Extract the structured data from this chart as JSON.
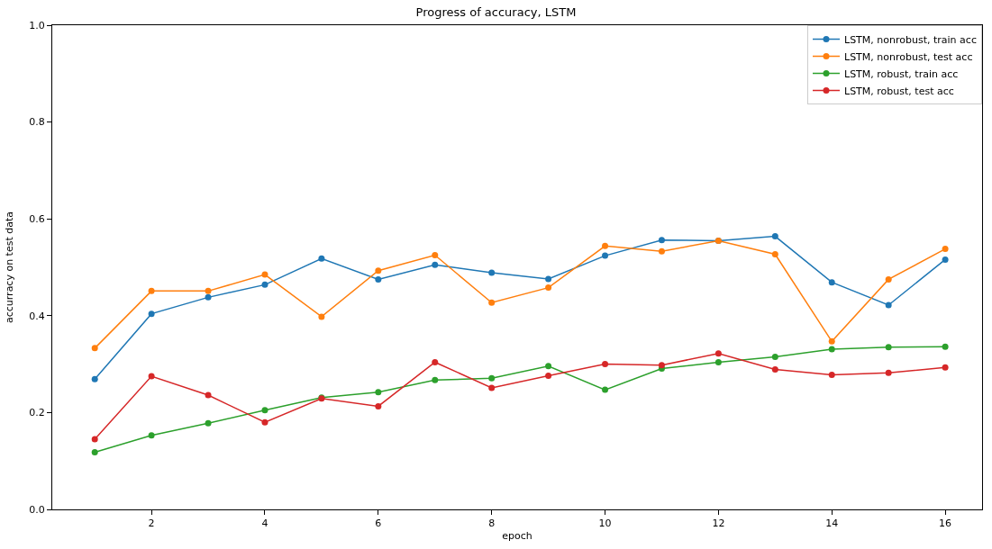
{
  "chart_data": {
    "type": "line",
    "title": "Progress of accuracy, LSTM",
    "xlabel": "epoch",
    "ylabel": "accurracy on test data",
    "x": [
      1,
      2,
      3,
      4,
      5,
      6,
      7,
      8,
      9,
      10,
      11,
      12,
      13,
      14,
      15,
      16
    ],
    "series": [
      {
        "name": "LSTM, nonrobust, train acc",
        "color": "#1f77b4",
        "values": [
          0.269,
          0.404,
          0.438,
          0.464,
          0.518,
          0.475,
          0.505,
          0.489,
          0.476,
          0.524,
          0.556,
          0.555,
          0.564,
          0.469,
          0.422,
          0.516
        ]
      },
      {
        "name": "LSTM, nonrobust, test acc",
        "color": "#ff7f0e",
        "values": [
          0.333,
          0.451,
          0.451,
          0.485,
          0.398,
          0.493,
          0.525,
          0.427,
          0.458,
          0.544,
          0.533,
          0.555,
          0.527,
          0.347,
          0.475,
          0.538
        ]
      },
      {
        "name": "LSTM, robust, train acc",
        "color": "#2ca02c",
        "values": [
          0.118,
          0.153,
          0.178,
          0.205,
          0.231,
          0.242,
          0.267,
          0.271,
          0.296,
          0.247,
          0.291,
          0.304,
          0.315,
          0.331,
          0.335,
          0.336
        ]
      },
      {
        "name": "LSTM, robust, test acc",
        "color": "#d62728",
        "values": [
          0.145,
          0.275,
          0.236,
          0.18,
          0.229,
          0.213,
          0.304,
          0.251,
          0.276,
          0.3,
          0.298,
          0.322,
          0.289,
          0.278,
          0.282,
          0.293
        ]
      }
    ],
    "xlim": [
      0.25,
      16.65
    ],
    "xticks": [
      2,
      4,
      6,
      8,
      10,
      12,
      14,
      16
    ],
    "ylim": [
      0,
      1
    ],
    "yticks": [
      {
        "value": 0,
        "label": "0.0"
      },
      {
        "value": 0.2,
        "label": "0.2"
      },
      {
        "value": 0.4,
        "label": "0.4"
      },
      {
        "value": 0.6,
        "label": "0.6"
      },
      {
        "value": 0.8,
        "label": "0.8"
      },
      {
        "value": 1,
        "label": "1.0"
      }
    ],
    "grid": false,
    "legend": "top right",
    "marker": "circle",
    "line_style": "solid"
  }
}
